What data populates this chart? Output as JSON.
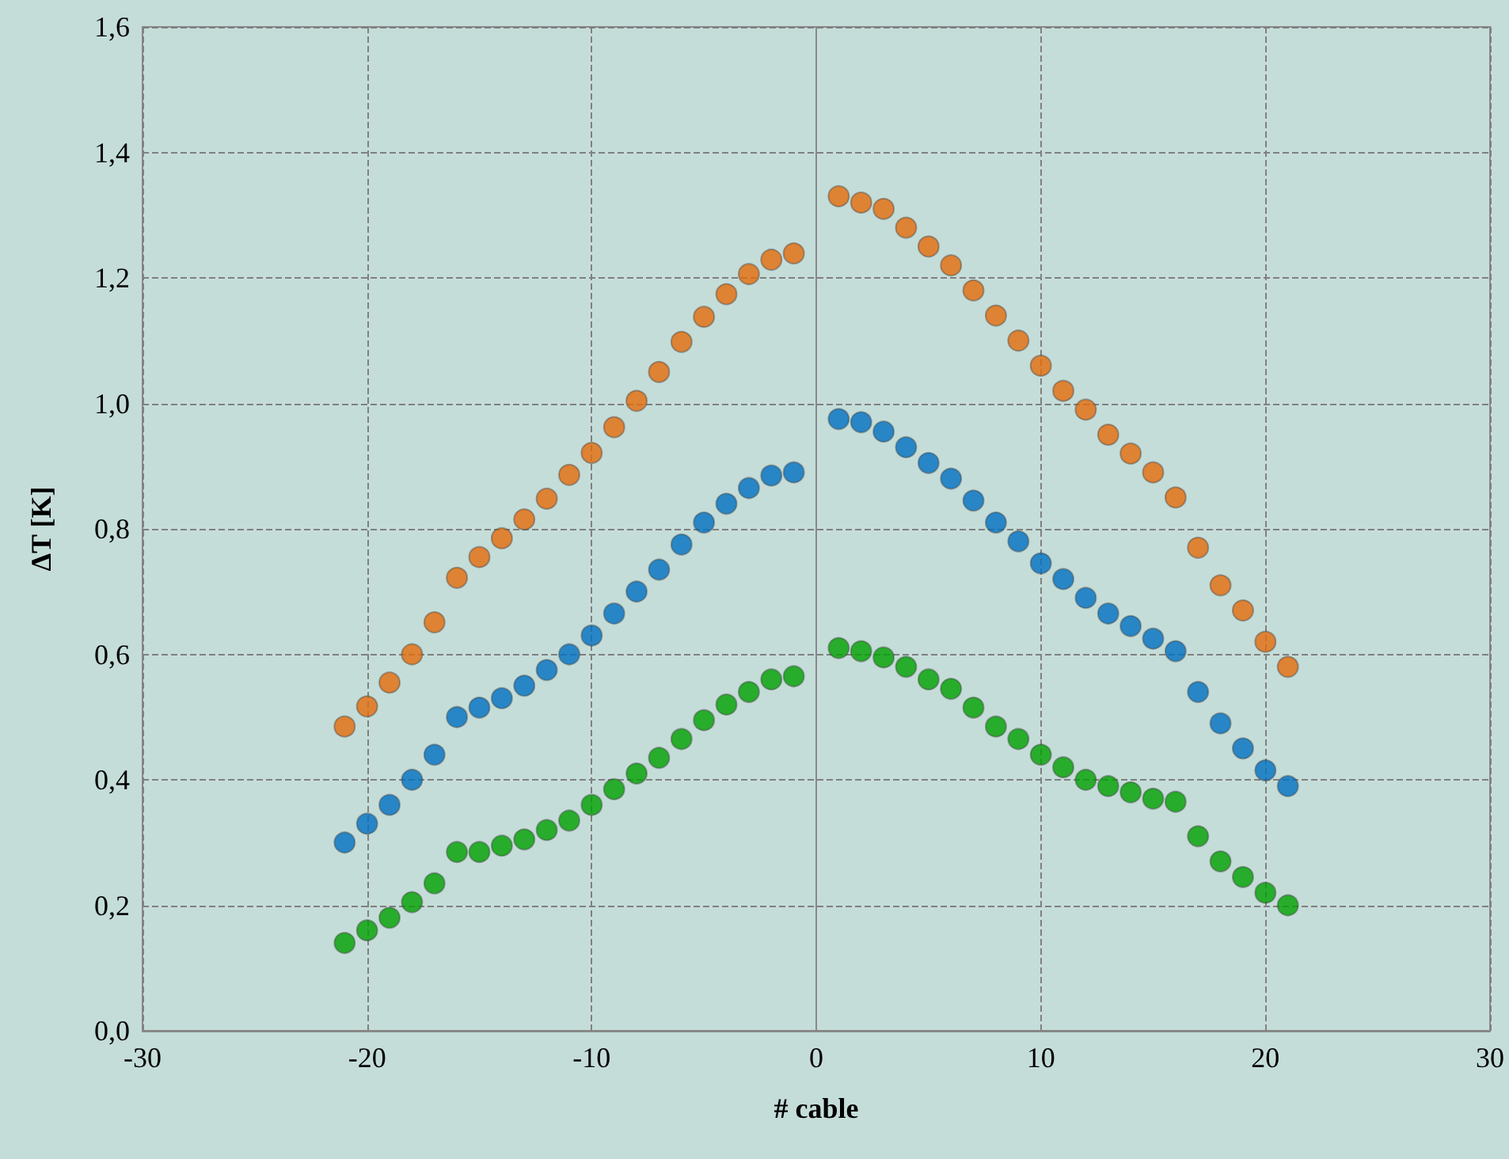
{
  "chart_data": {
    "type": "scatter",
    "xlabel": "# cable",
    "ylabel": "ΔT [K]",
    "xlim": [
      -30,
      30
    ],
    "xticks": [
      -30,
      -20,
      -10,
      0,
      10,
      20,
      30
    ],
    "ylim": [
      0,
      1.6
    ],
    "yticks": [
      {
        "value": 0,
        "label": "0,0"
      },
      {
        "value": 0.2,
        "label": "0,2"
      },
      {
        "value": 0.4,
        "label": "0,4"
      },
      {
        "value": 0.6,
        "label": "0,6"
      },
      {
        "value": 0.8,
        "label": "0,8"
      },
      {
        "value": 1.0,
        "label": "1,0"
      },
      {
        "value": 1.2,
        "label": "1,2"
      },
      {
        "value": 1.4,
        "label": "1,4"
      },
      {
        "value": 1.6,
        "label": "1,6"
      }
    ],
    "x": [
      -21,
      -20,
      -19,
      -18,
      -17,
      -16,
      -15,
      -14,
      -13,
      -12,
      -11,
      -10,
      -9,
      -8,
      -7,
      -6,
      -5,
      -4,
      -3,
      -2,
      -1,
      1,
      2,
      3,
      4,
      5,
      6,
      7,
      8,
      9,
      10,
      11,
      12,
      13,
      14,
      15,
      16,
      17,
      18,
      19,
      20,
      21
    ],
    "grid": true,
    "marker": "circle",
    "line_style": "dashed",
    "series": [
      {
        "color": "#e36c0a",
        "values": [
          0.485,
          0.517,
          0.555,
          0.6,
          0.651,
          0.722,
          0.755,
          0.785,
          0.815,
          0.848,
          0.886,
          0.921,
          0.962,
          1.004,
          1.05,
          1.098,
          1.138,
          1.174,
          1.206,
          1.229,
          1.239,
          1.33,
          1.32,
          1.31,
          1.28,
          1.25,
          1.22,
          1.18,
          1.14,
          1.1,
          1.06,
          1.02,
          0.99,
          0.95,
          0.92,
          0.89,
          0.85,
          0.77,
          0.71,
          0.67,
          0.62,
          0.58
        ]
      },
      {
        "color": "#0070c0",
        "values": [
          0.3,
          0.33,
          0.36,
          0.4,
          0.44,
          0.5,
          0.515,
          0.53,
          0.55,
          0.575,
          0.6,
          0.63,
          0.665,
          0.7,
          0.735,
          0.775,
          0.81,
          0.84,
          0.865,
          0.885,
          0.89,
          0.975,
          0.97,
          0.955,
          0.93,
          0.905,
          0.88,
          0.845,
          0.81,
          0.78,
          0.745,
          0.72,
          0.69,
          0.665,
          0.645,
          0.625,
          0.605,
          0.54,
          0.49,
          0.45,
          0.415,
          0.39
        ]
      },
      {
        "color": "#00a000",
        "values": [
          0.14,
          0.16,
          0.18,
          0.205,
          0.235,
          0.285,
          0.285,
          0.295,
          0.305,
          0.32,
          0.335,
          0.36,
          0.385,
          0.41,
          0.435,
          0.465,
          0.495,
          0.52,
          0.54,
          0.56,
          0.565,
          0.61,
          0.605,
          0.595,
          0.58,
          0.56,
          0.545,
          0.515,
          0.485,
          0.465,
          0.44,
          0.42,
          0.4,
          0.39,
          0.38,
          0.37,
          0.365,
          0.31,
          0.27,
          0.245,
          0.22,
          0.2
        ]
      }
    ]
  }
}
